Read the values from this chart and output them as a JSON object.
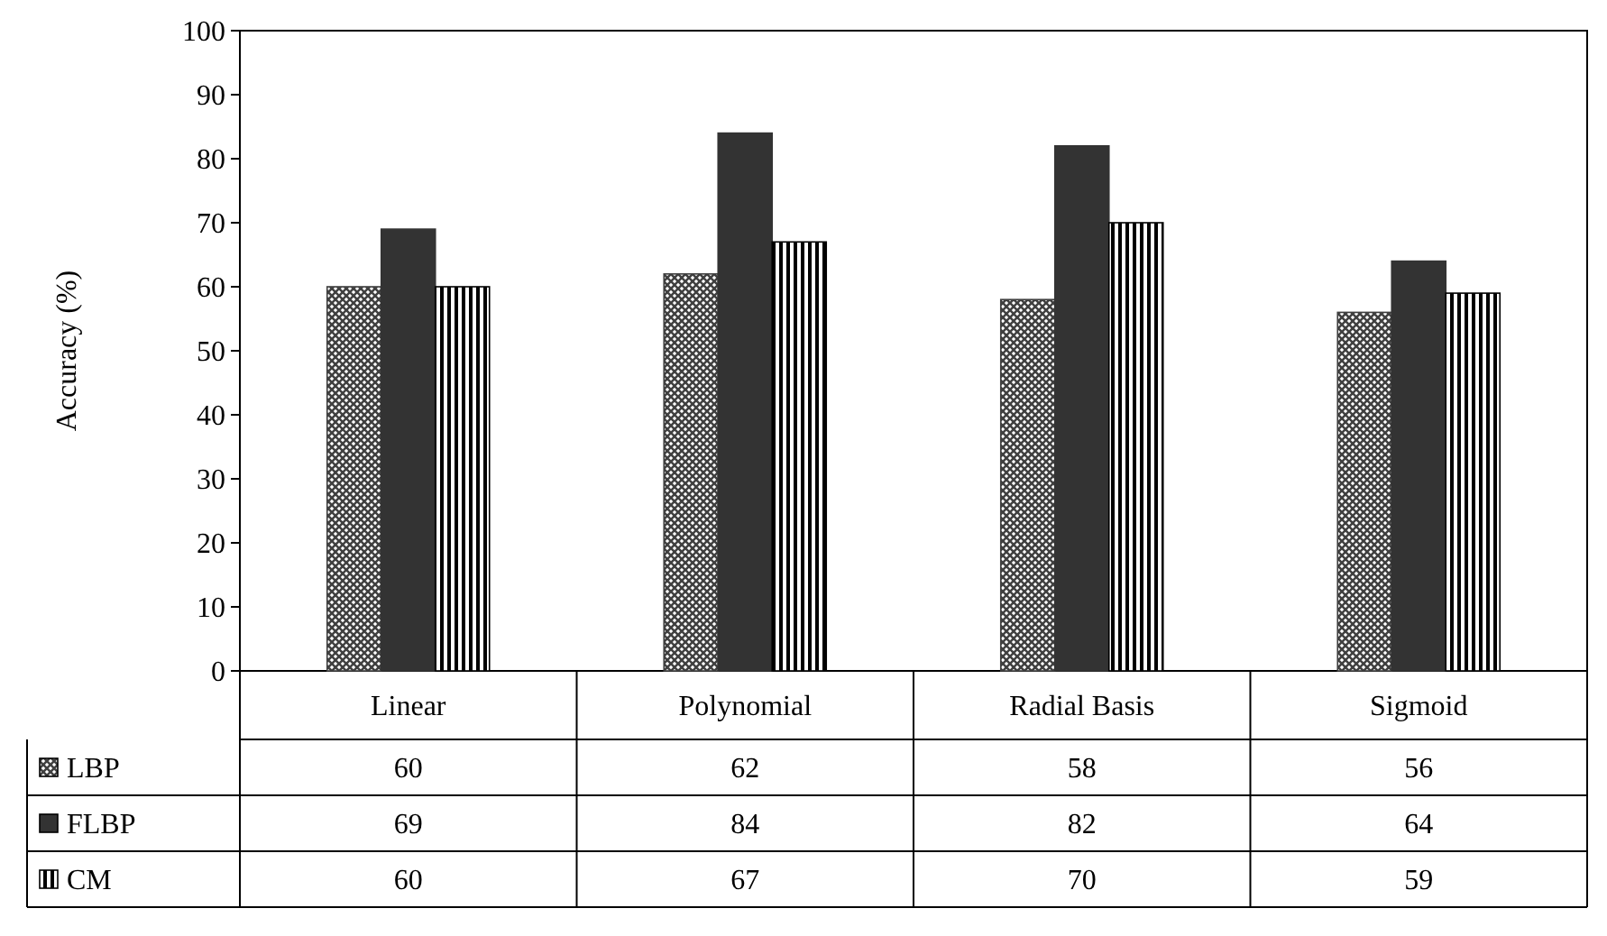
{
  "chart_data": {
    "type": "bar",
    "ylabel": "Accuracy (%)",
    "categories": [
      "Linear",
      "Polynomial",
      "Radial Basis",
      "Sigmoid"
    ],
    "series": [
      {
        "name": "LBP",
        "color": "#404040",
        "values": [
          60,
          62,
          58,
          56
        ]
      },
      {
        "name": "FLBP",
        "color": "#333333",
        "values": [
          69,
          84,
          82,
          64
        ]
      },
      {
        "name": "CM",
        "color": "#000000",
        "values": [
          60,
          67,
          70,
          59
        ]
      }
    ],
    "ylim": [
      0,
      100
    ],
    "yticks": [
      0,
      10,
      20,
      30,
      40,
      50,
      60,
      70,
      80,
      90,
      100
    ],
    "data_labels": true,
    "legend": "bottom"
  }
}
